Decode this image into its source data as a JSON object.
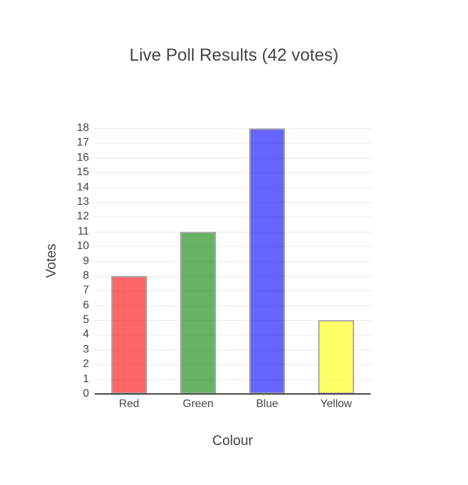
{
  "chart_data": {
    "type": "bar",
    "title": "Live Poll Results (42 votes)",
    "xlabel": "Colour",
    "ylabel": "Votes",
    "categories": [
      "Red",
      "Green",
      "Blue",
      "Yellow"
    ],
    "values": [
      8,
      11,
      18,
      5
    ],
    "total_votes": 42,
    "ylim": [
      0,
      18
    ],
    "ytick_step": 1,
    "ytick_labels": [
      "0",
      "1",
      "2",
      "3",
      "4",
      "5",
      "6",
      "7",
      "8",
      "9",
      "10",
      "11",
      "12",
      "13",
      "14",
      "15",
      "16",
      "17",
      "18"
    ],
    "grid": true,
    "legend": "none",
    "bar_colors": [
      "rgba(255,0,0,0.6)",
      "rgba(0,128,0,0.6)",
      "rgba(0,0,255,0.6)",
      "rgba(255,255,0,0.6)"
    ],
    "bar_colors_flat": [
      "#ff6666",
      "#66b366",
      "#6666ff",
      "#ffff66"
    ],
    "bar_border_color": "#aaaaaa",
    "text_color": "#444444",
    "grid_color": "#ebebeb",
    "zeroline_color": "#444444",
    "background_color": "#ffffff"
  }
}
